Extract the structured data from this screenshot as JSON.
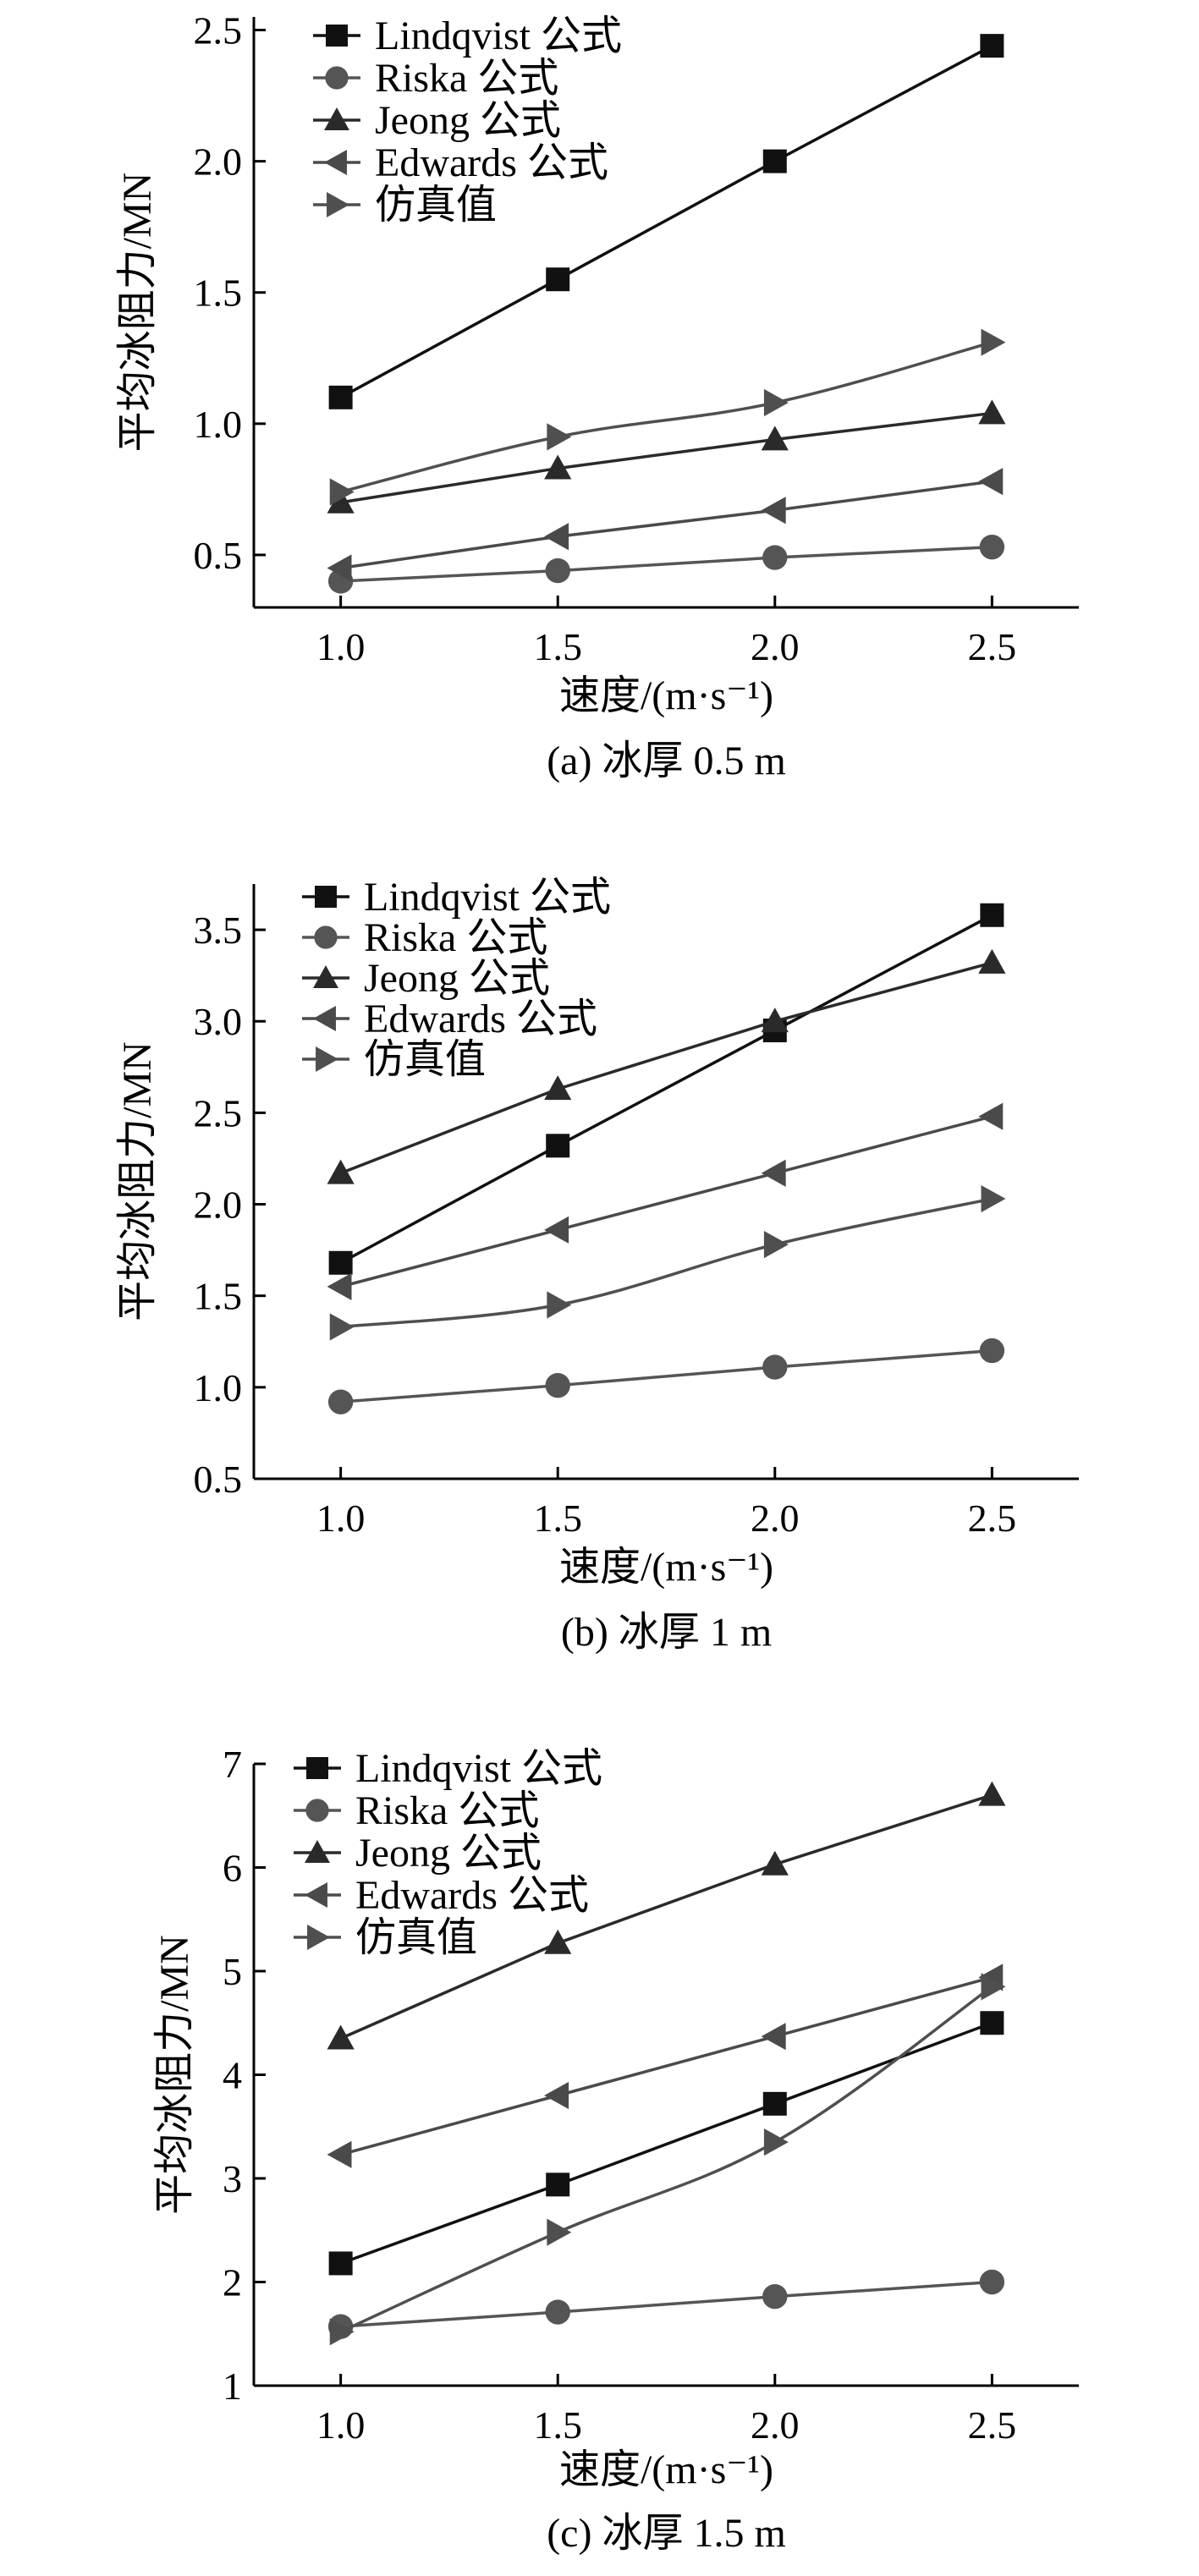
{
  "series_styles": [
    {
      "name": "Lindqvist 公式",
      "marker": "square",
      "color": "#111111"
    },
    {
      "name": "Riska 公式",
      "marker": "circle",
      "color": "#555555"
    },
    {
      "name": "Jeong 公式",
      "marker": "triangle-up",
      "color": "#2a2a2a"
    },
    {
      "name": "Edwards 公式",
      "marker": "triangle-left",
      "color": "#4a4a4a"
    },
    {
      "name": "仿真值",
      "marker": "triangle-right",
      "color": "#4f4f4f"
    }
  ],
  "chart_data": [
    {
      "type": "line",
      "caption": "(a) 冰厚 0.5 m",
      "xlabel": "速度/(m·s⁻¹)",
      "ylabel": "平均冰阻力/MN",
      "x": [
        1.0,
        1.5,
        2.0,
        2.5
      ],
      "xlim": [
        0.8,
        2.7
      ],
      "ylim": [
        0.3,
        2.55
      ],
      "xticks": [
        "1.0",
        "1.5",
        "2.0",
        "2.5"
      ],
      "yticks": [
        "0.5",
        "1.0",
        "1.5",
        "2.0",
        "2.5"
      ],
      "ytick_values": [
        0.5,
        1.0,
        1.5,
        2.0,
        2.5
      ],
      "series": [
        {
          "name": "Lindqvist 公式",
          "values": [
            1.1,
            1.55,
            2.0,
            2.44
          ]
        },
        {
          "name": "Riska 公式",
          "values": [
            0.4,
            0.44,
            0.49,
            0.53
          ]
        },
        {
          "name": "Jeong 公式",
          "values": [
            0.7,
            0.83,
            0.94,
            1.04
          ]
        },
        {
          "name": "Edwards 公式",
          "values": [
            0.45,
            0.57,
            0.67,
            0.78
          ]
        },
        {
          "name": "仿真值",
          "values": [
            0.74,
            0.95,
            1.08,
            1.31
          ]
        }
      ]
    },
    {
      "type": "line",
      "caption": "(b) 冰厚 1 m",
      "xlabel": "速度/(m·s⁻¹)",
      "ylabel": "平均冰阻力/MN",
      "x": [
        1.0,
        1.5,
        2.0,
        2.5
      ],
      "xlim": [
        0.8,
        2.7
      ],
      "ylim": [
        0.5,
        3.75
      ],
      "xticks": [
        "1.0",
        "1.5",
        "2.0",
        "2.5"
      ],
      "yticks": [
        "0.5",
        "1.0",
        "1.5",
        "2.0",
        "2.5",
        "3.0",
        "3.5"
      ],
      "ytick_values": [
        0.5,
        1.0,
        1.5,
        2.0,
        2.5,
        3.0,
        3.5
      ],
      "series": [
        {
          "name": "Lindqvist 公式",
          "values": [
            1.68,
            2.32,
            2.95,
            3.58
          ]
        },
        {
          "name": "Riska 公式",
          "values": [
            0.92,
            1.01,
            1.11,
            1.2
          ]
        },
        {
          "name": "Jeong 公式",
          "values": [
            2.17,
            2.63,
            3.0,
            3.32
          ]
        },
        {
          "name": "Edwards 公式",
          "values": [
            1.55,
            1.86,
            2.17,
            2.48
          ]
        },
        {
          "name": "仿真值",
          "values": [
            1.33,
            1.45,
            1.78,
            2.03
          ]
        }
      ]
    },
    {
      "type": "line",
      "caption": "(c) 冰厚 1.5 m",
      "xlabel": "速度/(m·s⁻¹)",
      "ylabel": "平均冰阻力/MN",
      "x": [
        1.0,
        1.5,
        2.0,
        2.5
      ],
      "xlim": [
        0.8,
        2.7
      ],
      "ylim": [
        1.0,
        7.0
      ],
      "xticks": [
        "1.0",
        "1.5",
        "2.0",
        "2.5"
      ],
      "yticks": [
        "1",
        "2",
        "3",
        "4",
        "5",
        "6",
        "7"
      ],
      "ytick_values": [
        1,
        2,
        3,
        4,
        5,
        6,
        7
      ],
      "series": [
        {
          "name": "Lindqvist 公式",
          "values": [
            2.18,
            2.94,
            3.72,
            4.5
          ]
        },
        {
          "name": "Riska 公式",
          "values": [
            1.57,
            1.71,
            1.86,
            2.0
          ]
        },
        {
          "name": "Jeong 公式",
          "values": [
            4.35,
            5.27,
            6.03,
            6.7
          ]
        },
        {
          "name": "Edwards 公式",
          "values": [
            3.23,
            3.8,
            4.37,
            4.94
          ]
        },
        {
          "name": "仿真值",
          "values": [
            1.52,
            2.48,
            3.35,
            4.85
          ]
        }
      ]
    }
  ]
}
